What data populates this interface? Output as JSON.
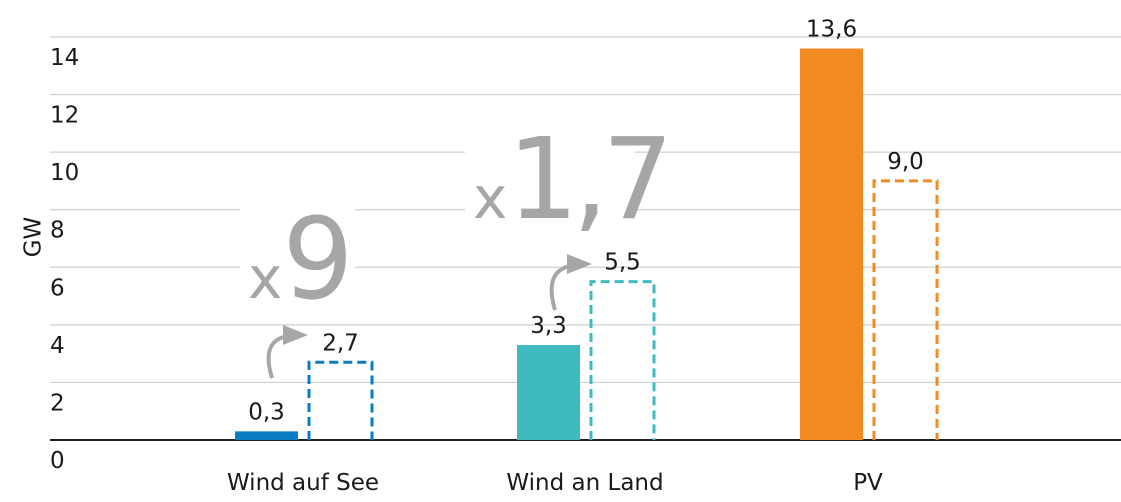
{
  "chart_data": {
    "type": "bar",
    "y_label": "GW",
    "categories": [
      "Wind auf See",
      "Wind an Land",
      "PV"
    ],
    "colors": [
      "#0a7cc1",
      "#3fbbc0",
      "#f08a21"
    ],
    "series": [
      {
        "style": "solid",
        "values": [
          0.3,
          3.3,
          13.6
        ],
        "value_labels": [
          "0,3",
          "3,3",
          "13,6"
        ]
      },
      {
        "style": "dashed",
        "values": [
          2.7,
          5.5,
          9.0
        ],
        "value_labels": [
          "2,7",
          "5,5",
          "9,0"
        ]
      }
    ],
    "ylim": [
      0,
      14
    ],
    "yticks": [
      0,
      2,
      4,
      6,
      8,
      10,
      12,
      14
    ],
    "grid": true,
    "annotations": [
      {
        "prefix": "x",
        "factor": "9"
      },
      {
        "prefix": "x",
        "factor": "1,7"
      }
    ]
  }
}
